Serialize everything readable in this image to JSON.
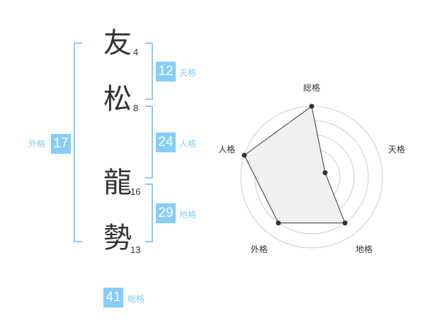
{
  "characters": [
    {
      "char": "友",
      "strokes": "4"
    },
    {
      "char": "松",
      "strokes": "8"
    },
    {
      "char": "龍",
      "strokes": "16"
    },
    {
      "char": "勢",
      "strokes": "13"
    }
  ],
  "kaku": {
    "tenkaku": {
      "label": "天格",
      "value": "12"
    },
    "jinkaku": {
      "label": "人格",
      "value": "24"
    },
    "chikaku": {
      "label": "地格",
      "value": "29"
    },
    "gaikaku": {
      "label": "外格",
      "value": "17"
    },
    "soukaku": {
      "label": "総格",
      "value": "41"
    }
  },
  "accent_color": "#86cdf9",
  "chart_data": {
    "type": "radar",
    "axes": [
      "総格",
      "天格",
      "地格",
      "外格",
      "人格"
    ],
    "values": [
      5,
      1,
      4,
      4,
      5
    ],
    "range": [
      0,
      5
    ],
    "rings": 5,
    "fill_color": "#f0f0f0",
    "line_color": "#333333"
  }
}
